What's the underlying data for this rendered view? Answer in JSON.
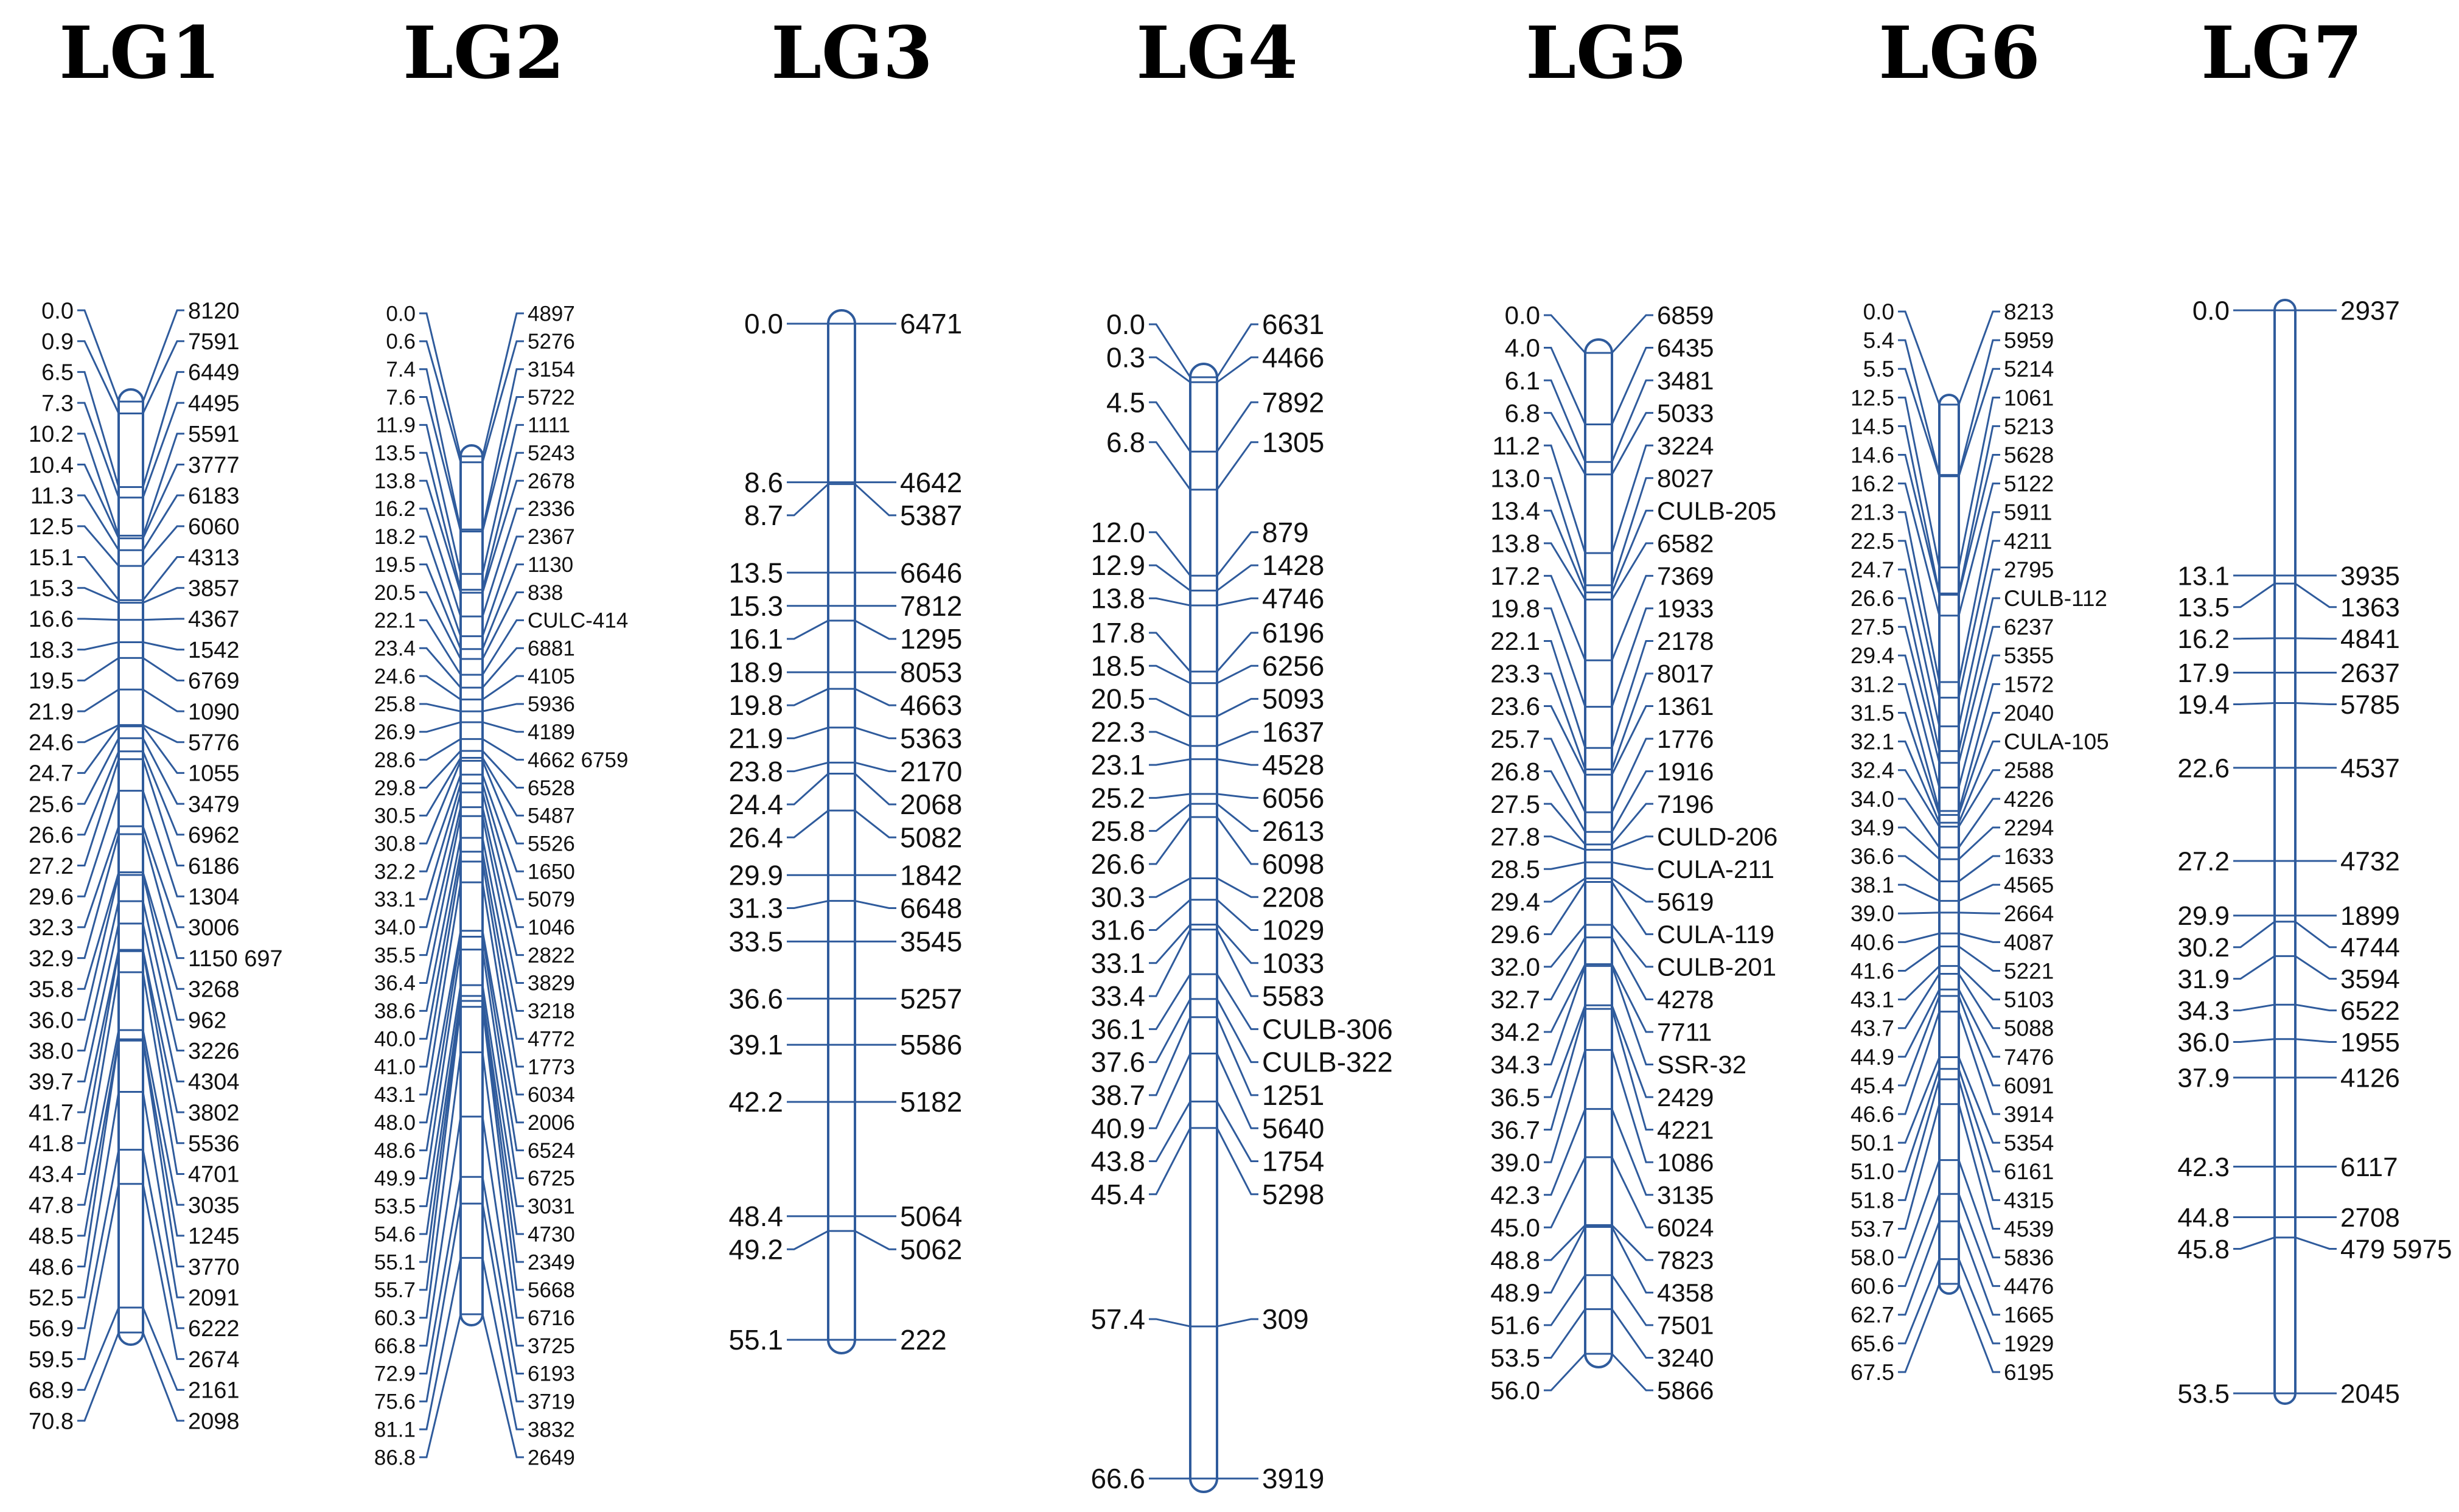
{
  "colors": {
    "line": "#2f5b9c",
    "text": "#111111",
    "title": "#000000"
  },
  "linkage_groups": [
    {
      "title": "LG1",
      "length": 70.8,
      "markers": [
        {
          "pos": "0.0",
          "name": "8120"
        },
        {
          "pos": "0.9",
          "name": "7591"
        },
        {
          "pos": "6.5",
          "name": "6449"
        },
        {
          "pos": "7.3",
          "name": "4495"
        },
        {
          "pos": "10.2",
          "name": "5591"
        },
        {
          "pos": "10.4",
          "name": "3777"
        },
        {
          "pos": "11.3",
          "name": "6183"
        },
        {
          "pos": "12.5",
          "name": "6060"
        },
        {
          "pos": "15.1",
          "name": "4313"
        },
        {
          "pos": "15.3",
          "name": "3857"
        },
        {
          "pos": "16.6",
          "name": "4367"
        },
        {
          "pos": "18.3",
          "name": "1542"
        },
        {
          "pos": "19.5",
          "name": "6769"
        },
        {
          "pos": "21.9",
          "name": "1090"
        },
        {
          "pos": "24.6",
          "name": "5776"
        },
        {
          "pos": "24.7",
          "name": "1055"
        },
        {
          "pos": "25.6",
          "name": "3479"
        },
        {
          "pos": "26.6",
          "name": "6962"
        },
        {
          "pos": "27.2",
          "name": "6186"
        },
        {
          "pos": "29.6",
          "name": "1304"
        },
        {
          "pos": "32.3",
          "name": "3006"
        },
        {
          "pos": "32.9",
          "name": "1150 697"
        },
        {
          "pos": "35.8",
          "name": "3268"
        },
        {
          "pos": "36.0",
          "name": "962"
        },
        {
          "pos": "38.0",
          "name": "3226"
        },
        {
          "pos": "39.7",
          "name": "4304"
        },
        {
          "pos": "41.7",
          "name": "3802"
        },
        {
          "pos": "41.8",
          "name": "5536"
        },
        {
          "pos": "43.4",
          "name": "4701"
        },
        {
          "pos": "47.8",
          "name": "3035"
        },
        {
          "pos": "48.5",
          "name": "1245"
        },
        {
          "pos": "48.6",
          "name": "3770"
        },
        {
          "pos": "52.5",
          "name": "2091"
        },
        {
          "pos": "56.9",
          "name": "6222"
        },
        {
          "pos": "59.5",
          "name": "2674"
        },
        {
          "pos": "68.9",
          "name": "2161"
        },
        {
          "pos": "70.8",
          "name": "2098"
        }
      ]
    },
    {
      "title": "LG2",
      "length": 86.8,
      "markers": [
        {
          "pos": "0.0",
          "name": "4897"
        },
        {
          "pos": "0.6",
          "name": "5276"
        },
        {
          "pos": "7.4",
          "name": "3154"
        },
        {
          "pos": "7.6",
          "name": "5722"
        },
        {
          "pos": "11.9",
          "name": "1111"
        },
        {
          "pos": "13.5",
          "name": "5243"
        },
        {
          "pos": "13.8",
          "name": "2678"
        },
        {
          "pos": "16.2",
          "name": "2336"
        },
        {
          "pos": "18.2",
          "name": "2367"
        },
        {
          "pos": "19.5",
          "name": "1130"
        },
        {
          "pos": "20.5",
          "name": "838"
        },
        {
          "pos": "22.1",
          "name": "CULC-414"
        },
        {
          "pos": "23.4",
          "name": "6881"
        },
        {
          "pos": "24.6",
          "name": "4105"
        },
        {
          "pos": "25.8",
          "name": "5936"
        },
        {
          "pos": "26.9",
          "name": "4189"
        },
        {
          "pos": "28.6",
          "name": "4662 6759"
        },
        {
          "pos": "29.8",
          "name": "6528"
        },
        {
          "pos": "30.5",
          "name": "5487"
        },
        {
          "pos": "30.8",
          "name": "5526"
        },
        {
          "pos": "32.2",
          "name": "1650"
        },
        {
          "pos": "33.1",
          "name": "5079"
        },
        {
          "pos": "34.0",
          "name": "1046"
        },
        {
          "pos": "35.5",
          "name": "2822"
        },
        {
          "pos": "36.4",
          "name": "3829"
        },
        {
          "pos": "38.6",
          "name": "3218"
        },
        {
          "pos": "40.0",
          "name": "4772"
        },
        {
          "pos": "41.0",
          "name": "1773"
        },
        {
          "pos": "43.1",
          "name": "6034"
        },
        {
          "pos": "48.0",
          "name": "2006"
        },
        {
          "pos": "48.6",
          "name": "6524"
        },
        {
          "pos": "49.9",
          "name": "6725"
        },
        {
          "pos": "53.5",
          "name": "3031"
        },
        {
          "pos": "54.6",
          "name": "4730"
        },
        {
          "pos": "55.1",
          "name": "2349"
        },
        {
          "pos": "55.7",
          "name": "5668"
        },
        {
          "pos": "60.3",
          "name": "6716"
        },
        {
          "pos": "66.8",
          "name": "3725"
        },
        {
          "pos": "72.9",
          "name": "6193"
        },
        {
          "pos": "75.6",
          "name": "3719"
        },
        {
          "pos": "81.1",
          "name": "3832"
        },
        {
          "pos": "86.8",
          "name": "2649"
        }
      ]
    },
    {
      "title": "LG3",
      "length": 55.1,
      "markers": [
        {
          "pos": "0.0",
          "name": "6471"
        },
        {
          "pos": "8.6",
          "name": "4642"
        },
        {
          "pos": "8.7",
          "name": "5387"
        },
        {
          "pos": "13.5",
          "name": "6646"
        },
        {
          "pos": "15.3",
          "name": "7812"
        },
        {
          "pos": "16.1",
          "name": "1295"
        },
        {
          "pos": "18.9",
          "name": "8053"
        },
        {
          "pos": "19.8",
          "name": "4663"
        },
        {
          "pos": "21.9",
          "name": "5363"
        },
        {
          "pos": "23.8",
          "name": "2170"
        },
        {
          "pos": "24.4",
          "name": "2068"
        },
        {
          "pos": "26.4",
          "name": "5082"
        },
        {
          "pos": "29.9",
          "name": "1842"
        },
        {
          "pos": "31.3",
          "name": "6648"
        },
        {
          "pos": "33.5",
          "name": "3545"
        },
        {
          "pos": "36.6",
          "name": "5257"
        },
        {
          "pos": "39.1",
          "name": "5586"
        },
        {
          "pos": "42.2",
          "name": "5182"
        },
        {
          "pos": "48.4",
          "name": "5064"
        },
        {
          "pos": "49.2",
          "name": "5062"
        },
        {
          "pos": "55.1",
          "name": "222"
        }
      ]
    },
    {
      "title": "LG4",
      "length": 66.6,
      "markers": [
        {
          "pos": "0.0",
          "name": "6631"
        },
        {
          "pos": "0.3",
          "name": "4466"
        },
        {
          "pos": "4.5",
          "name": "7892"
        },
        {
          "pos": "6.8",
          "name": "1305"
        },
        {
          "pos": "12.0",
          "name": "879"
        },
        {
          "pos": "12.9",
          "name": "1428"
        },
        {
          "pos": "13.8",
          "name": "4746"
        },
        {
          "pos": "17.8",
          "name": "6196"
        },
        {
          "pos": "18.5",
          "name": "6256"
        },
        {
          "pos": "20.5",
          "name": "5093"
        },
        {
          "pos": "22.3",
          "name": "1637"
        },
        {
          "pos": "23.1",
          "name": "4528"
        },
        {
          "pos": "25.2",
          "name": "6056"
        },
        {
          "pos": "25.8",
          "name": "2613"
        },
        {
          "pos": "26.6",
          "name": "6098"
        },
        {
          "pos": "30.3",
          "name": "2208"
        },
        {
          "pos": "31.6",
          "name": "1029"
        },
        {
          "pos": "33.1",
          "name": "1033"
        },
        {
          "pos": "33.4",
          "name": "5583"
        },
        {
          "pos": "36.1",
          "name": "CULB-306"
        },
        {
          "pos": "37.6",
          "name": "CULB-322"
        },
        {
          "pos": "38.7",
          "name": "1251"
        },
        {
          "pos": "40.9",
          "name": "5640"
        },
        {
          "pos": "43.8",
          "name": "1754"
        },
        {
          "pos": "45.4",
          "name": "5298"
        },
        {
          "pos": "57.4",
          "name": "309"
        },
        {
          "pos": "66.6",
          "name": "3919"
        }
      ]
    },
    {
      "title": "LG5",
      "length": 56.0,
      "markers": [
        {
          "pos": "0.0",
          "name": "6859"
        },
        {
          "pos": "4.0",
          "name": "6435"
        },
        {
          "pos": "6.1",
          "name": "3481"
        },
        {
          "pos": "6.8",
          "name": "5033"
        },
        {
          "pos": "11.2",
          "name": "3224"
        },
        {
          "pos": "13.0",
          "name": "8027"
        },
        {
          "pos": "13.4",
          "name": "CULB-205"
        },
        {
          "pos": "13.8",
          "name": "6582"
        },
        {
          "pos": "17.2",
          "name": "7369"
        },
        {
          "pos": "19.8",
          "name": "1933"
        },
        {
          "pos": "22.1",
          "name": "2178"
        },
        {
          "pos": "23.3",
          "name": "8017"
        },
        {
          "pos": "23.6",
          "name": "1361"
        },
        {
          "pos": "25.7",
          "name": "1776"
        },
        {
          "pos": "26.8",
          "name": "1916"
        },
        {
          "pos": "27.5",
          "name": "7196"
        },
        {
          "pos": "27.8",
          "name": "CULD-206"
        },
        {
          "pos": "28.5",
          "name": "CULA-211"
        },
        {
          "pos": "29.4",
          "name": "5619"
        },
        {
          "pos": "29.6",
          "name": "CULA-119"
        },
        {
          "pos": "32.0",
          "name": "CULB-201"
        },
        {
          "pos": "32.7",
          "name": "4278"
        },
        {
          "pos": "34.2",
          "name": "7711"
        },
        {
          "pos": "34.3",
          "name": "SSR-32"
        },
        {
          "pos": "36.5",
          "name": "2429"
        },
        {
          "pos": "36.7",
          "name": "4221"
        },
        {
          "pos": "39.0",
          "name": "1086"
        },
        {
          "pos": "42.3",
          "name": "3135"
        },
        {
          "pos": "45.0",
          "name": "6024"
        },
        {
          "pos": "48.8",
          "name": "7823"
        },
        {
          "pos": "48.9",
          "name": "4358"
        },
        {
          "pos": "51.6",
          "name": "7501"
        },
        {
          "pos": "53.5",
          "name": "3240"
        },
        {
          "pos": "56.0",
          "name": "5866"
        }
      ]
    },
    {
      "title": "LG6",
      "length": 67.5,
      "markers": [
        {
          "pos": "0.0",
          "name": "8213"
        },
        {
          "pos": "5.4",
          "name": "5959"
        },
        {
          "pos": "5.5",
          "name": "5214"
        },
        {
          "pos": "12.5",
          "name": "1061"
        },
        {
          "pos": "14.5",
          "name": "5213"
        },
        {
          "pos": "14.6",
          "name": "5628"
        },
        {
          "pos": "16.2",
          "name": "5122"
        },
        {
          "pos": "21.3",
          "name": "5911"
        },
        {
          "pos": "22.5",
          "name": "4211"
        },
        {
          "pos": "24.7",
          "name": "2795"
        },
        {
          "pos": "26.6",
          "name": "CULB-112"
        },
        {
          "pos": "27.5",
          "name": "6237"
        },
        {
          "pos": "29.4",
          "name": "5355"
        },
        {
          "pos": "31.2",
          "name": "1572"
        },
        {
          "pos": "31.5",
          "name": "2040"
        },
        {
          "pos": "32.1",
          "name": "CULA-105"
        },
        {
          "pos": "32.4",
          "name": "2588"
        },
        {
          "pos": "34.0",
          "name": "4226"
        },
        {
          "pos": "34.9",
          "name": "2294"
        },
        {
          "pos": "36.6",
          "name": "1633"
        },
        {
          "pos": "38.1",
          "name": "4565"
        },
        {
          "pos": "39.0",
          "name": "2664"
        },
        {
          "pos": "40.6",
          "name": "4087"
        },
        {
          "pos": "41.6",
          "name": "5221"
        },
        {
          "pos": "43.1",
          "name": "5103"
        },
        {
          "pos": "43.7",
          "name": "5088"
        },
        {
          "pos": "44.9",
          "name": "7476"
        },
        {
          "pos": "45.4",
          "name": "6091"
        },
        {
          "pos": "46.6",
          "name": "3914"
        },
        {
          "pos": "50.1",
          "name": "5354"
        },
        {
          "pos": "51.0",
          "name": "6161"
        },
        {
          "pos": "51.8",
          "name": "4315"
        },
        {
          "pos": "53.7",
          "name": "4539"
        },
        {
          "pos": "58.0",
          "name": "5836"
        },
        {
          "pos": "60.6",
          "name": "4476"
        },
        {
          "pos": "62.7",
          "name": "1665"
        },
        {
          "pos": "65.6",
          "name": "1929"
        },
        {
          "pos": "67.5",
          "name": "6195"
        }
      ]
    },
    {
      "title": "LG7",
      "length": 53.5,
      "markers": [
        {
          "pos": "0.0",
          "name": "2937"
        },
        {
          "pos": "13.1",
          "name": "3935"
        },
        {
          "pos": "13.5",
          "name": "1363"
        },
        {
          "pos": "16.2",
          "name": "4841"
        },
        {
          "pos": "17.9",
          "name": "2637"
        },
        {
          "pos": "19.4",
          "name": "5785"
        },
        {
          "pos": "22.6",
          "name": "4537"
        },
        {
          "pos": "27.2",
          "name": "4732"
        },
        {
          "pos": "29.9",
          "name": "1899"
        },
        {
          "pos": "30.2",
          "name": "4744"
        },
        {
          "pos": "31.9",
          "name": "3594"
        },
        {
          "pos": "34.3",
          "name": "6522"
        },
        {
          "pos": "36.0",
          "name": "1955"
        },
        {
          "pos": "37.9",
          "name": "4126"
        },
        {
          "pos": "42.3",
          "name": "6117"
        },
        {
          "pos": "44.8",
          "name": "2708"
        },
        {
          "pos": "45.8",
          "name": "479 5975"
        },
        {
          "pos": "53.5",
          "name": "2045"
        }
      ]
    }
  ]
}
